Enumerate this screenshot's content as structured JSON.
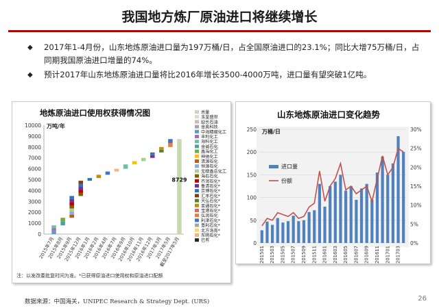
{
  "title": "我国地方炼厂原油进口将继续增长",
  "bullets": [
    "2017年1-4月份，山东地炼原油进口量为197万桶/日，占全国原油进口的23.1%；同比大增75万桶/日，占同期我国原油进口增量的74%。",
    "预计2017年山东地炼原油进口量将比2016年增长3500-4000万吨，进口量有望突破1亿吨。"
  ],
  "footer": {
    "source": "数据来源：中国海关，UNIPEC Research & Strategy Dept. (URS)",
    "page": "26"
  },
  "chart_data": [
    {
      "type": "bar",
      "title": "地炼原油进口使用权获得情况图",
      "ylabel": "万吨/年",
      "ylim": [
        0,
        10000
      ],
      "yticks": [
        0,
        1000,
        2000,
        3000,
        4000,
        5000,
        6000,
        7000,
        8000,
        9000,
        10000
      ],
      "categories": [
        "2015年7月",
        "2015年8月",
        "2015年9月",
        "2015年12月",
        "2016年1月",
        "2016年2月",
        "2016年4月",
        "2016年7月",
        "2016年9月",
        "2016年10月",
        "2016年11月",
        "2016年12月",
        "2017年3月",
        "2017年5月",
        "截至2017年5月"
      ],
      "steps": [
        {
          "base": 0,
          "value": 800
        },
        {
          "base": 800,
          "value": 700
        },
        {
          "base": 1500,
          "value": 2000
        },
        {
          "base": 3500,
          "value": 1400
        },
        {
          "base": 4900,
          "value": 250
        },
        {
          "base": 5150,
          "value": 300
        },
        {
          "base": 5450,
          "value": 300
        },
        {
          "base": 5750,
          "value": 250
        },
        {
          "base": 6000,
          "value": 400
        },
        {
          "base": 6400,
          "value": 300
        },
        {
          "base": 6700,
          "value": 300
        },
        {
          "base": 7000,
          "value": 500
        },
        {
          "base": 7500,
          "value": 500
        },
        {
          "base": 8000,
          "value": 729
        },
        {
          "base": 0,
          "value": 8729
        }
      ],
      "total_label": "8729",
      "legend": [
        "总量",
        "玉皇盛世",
        "延长石油",
        "金奥科技",
        "中海精细化工",
        "丰利化工",
        "海科化工",
        "金诚石化",
        "鑫海化工",
        "神驰化工",
        "清源石化",
        "恒源石化",
        "无棣鑫岳化工",
        "海右石化",
        "齐润石化*",
        "鲁清石化*",
        "京博石化*",
        "汇丰石化*",
        "天弘石化*",
        "亚通石化*",
        "宝港石化*",
        "弘润石化",
        "利津石化*",
        "垦利石化*",
        "北方洛宵*",
        "东明石化*",
        "已有"
      ],
      "legend_colors": [
        "#c8d8b0",
        "#d9d9d9",
        "#bfbfbf",
        "#a6a6a6",
        "#5b9bd5",
        "#9e6fc3",
        "#6fbf9f",
        "#4aa3a3",
        "#70ad47",
        "#ffc000",
        "#c55a11",
        "#8faadc",
        "#a9d18e",
        "#7f6000",
        "#c00000",
        "#7030a0",
        "#2e75b6",
        "#843c0c",
        "#548235",
        "#bf9000",
        "#e06666",
        "#ed7d31",
        "#4472c4",
        "#a5a5a5",
        "#ffd966",
        "#f4b183",
        "#262626"
      ],
      "footnote": "注：以发改委批复时间为准。*已获得原油进口使用权和原油进口配额"
    },
    {
      "type": "bar+line",
      "title": "山东地炼原油进口变化趋势",
      "ylabel": "万桶/日",
      "ylim": [
        0,
        250
      ],
      "yticks": [
        0,
        50,
        100,
        150,
        200,
        250
      ],
      "y2lim": [
        0,
        30
      ],
      "y2ticks": [
        "0%",
        "5%",
        "10%",
        "15%",
        "20%",
        "25%",
        "30%"
      ],
      "xticks": [
        "201501",
        "201503",
        "201505",
        "201507",
        "201509",
        "201511",
        "201601",
        "201603",
        "201605",
        "201607",
        "201609",
        "201611",
        "201701",
        "201703"
      ],
      "series": [
        {
          "name": "进口量",
          "type": "bar",
          "color": "#4f81bd",
          "values": [
            28,
            47,
            40,
            55,
            45,
            48,
            60,
            48,
            50,
            68,
            72,
            130,
            80,
            125,
            135,
            150,
            115,
            125,
            95,
            120,
            130,
            95,
            155,
            190,
            150,
            175,
            235,
            200
          ]
        },
        {
          "name": "份额",
          "type": "line",
          "color": "#c0504d",
          "values": [
            4.5,
            6.5,
            6,
            8,
            7.5,
            7,
            8,
            6.5,
            7,
            9.5,
            10.5,
            19,
            11,
            15,
            17,
            21,
            14,
            15,
            13,
            14,
            15,
            11,
            17,
            23,
            18,
            20,
            25,
            24
          ]
        }
      ]
    }
  ]
}
